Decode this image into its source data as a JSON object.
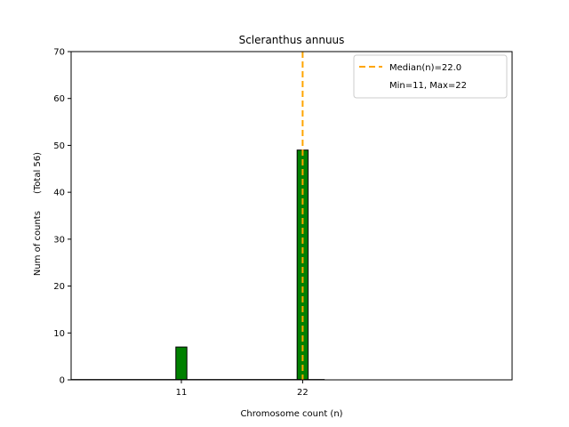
{
  "chart_data": {
    "type": "bar",
    "title": "Scleranthus annuus",
    "xlabel": "Chromosome count (n)",
    "ylabel": "Num of counts      (Total 56)",
    "xlim": [
      1,
      41
    ],
    "ylim": [
      0,
      70
    ],
    "x_ticks": [
      11,
      22
    ],
    "y_ticks": [
      0,
      10,
      20,
      30,
      40,
      50,
      60,
      70
    ],
    "bar_width": 1,
    "bars": [
      {
        "x": 11,
        "value": 7
      },
      {
        "x": 22,
        "value": 49
      }
    ],
    "median": 22.0,
    "legend": {
      "placement": "top-right",
      "entries": [
        {
          "label": "Median(n)=22.0",
          "style": "dashed-line"
        },
        {
          "label": "Min=11, Max=22",
          "style": "none"
        }
      ]
    },
    "colors": {
      "bar_fill": "#008000",
      "bar_edge": "#000000",
      "median_line": "#FFA500"
    },
    "grid": false
  }
}
